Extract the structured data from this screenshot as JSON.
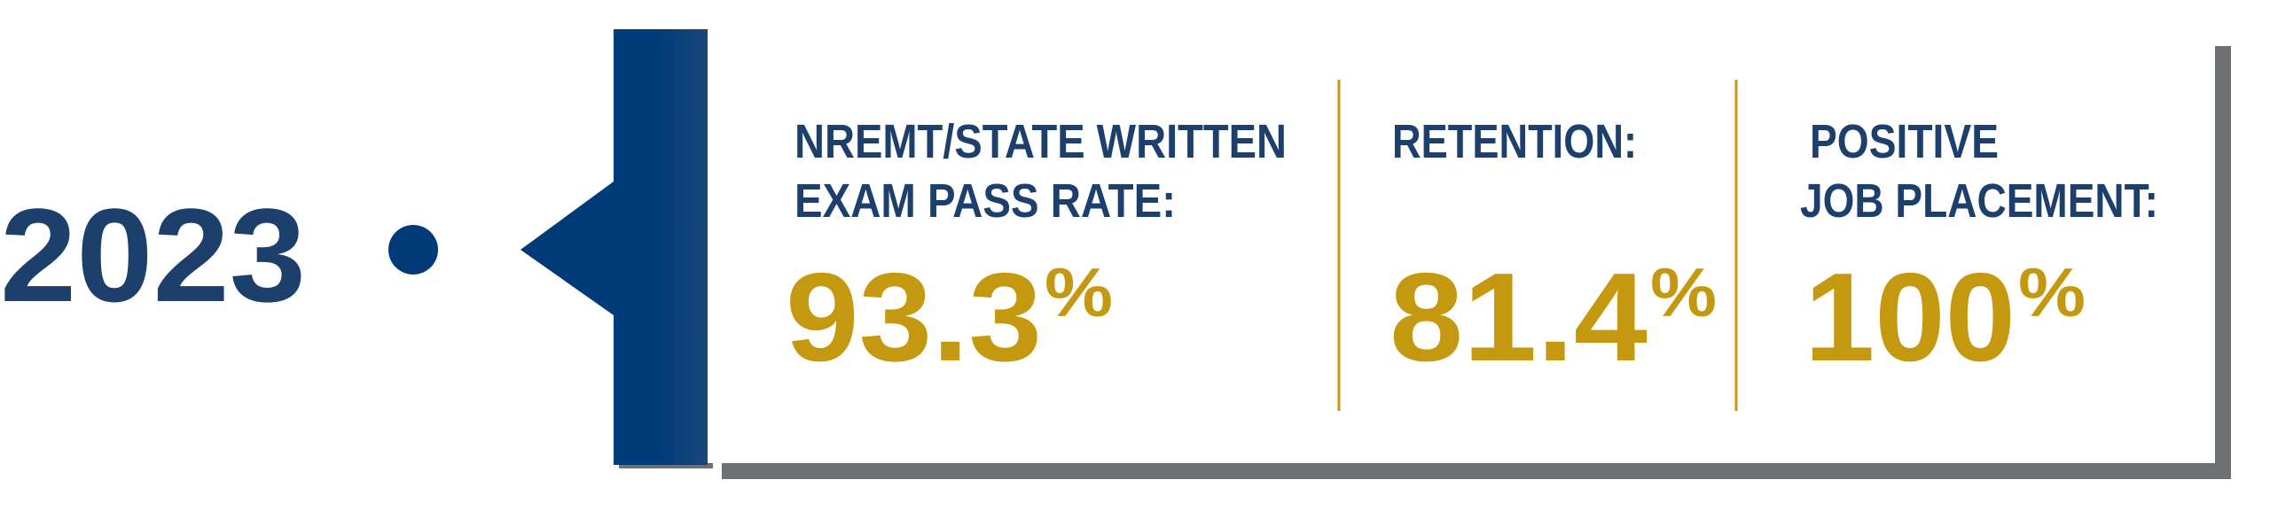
{
  "year": "2023",
  "stats": [
    {
      "label_lines": [
        "NREMT/STATE WRITTEN",
        "EXAM PASS RATE:"
      ],
      "value": "93.3",
      "unit": "%"
    },
    {
      "label_lines": [
        "RETENTION:"
      ],
      "value": "81.4",
      "unit": "%"
    },
    {
      "label_lines": [
        "POSITIVE",
        "JOB PLACEMENT:"
      ],
      "value": "100",
      "unit": "%"
    }
  ]
}
